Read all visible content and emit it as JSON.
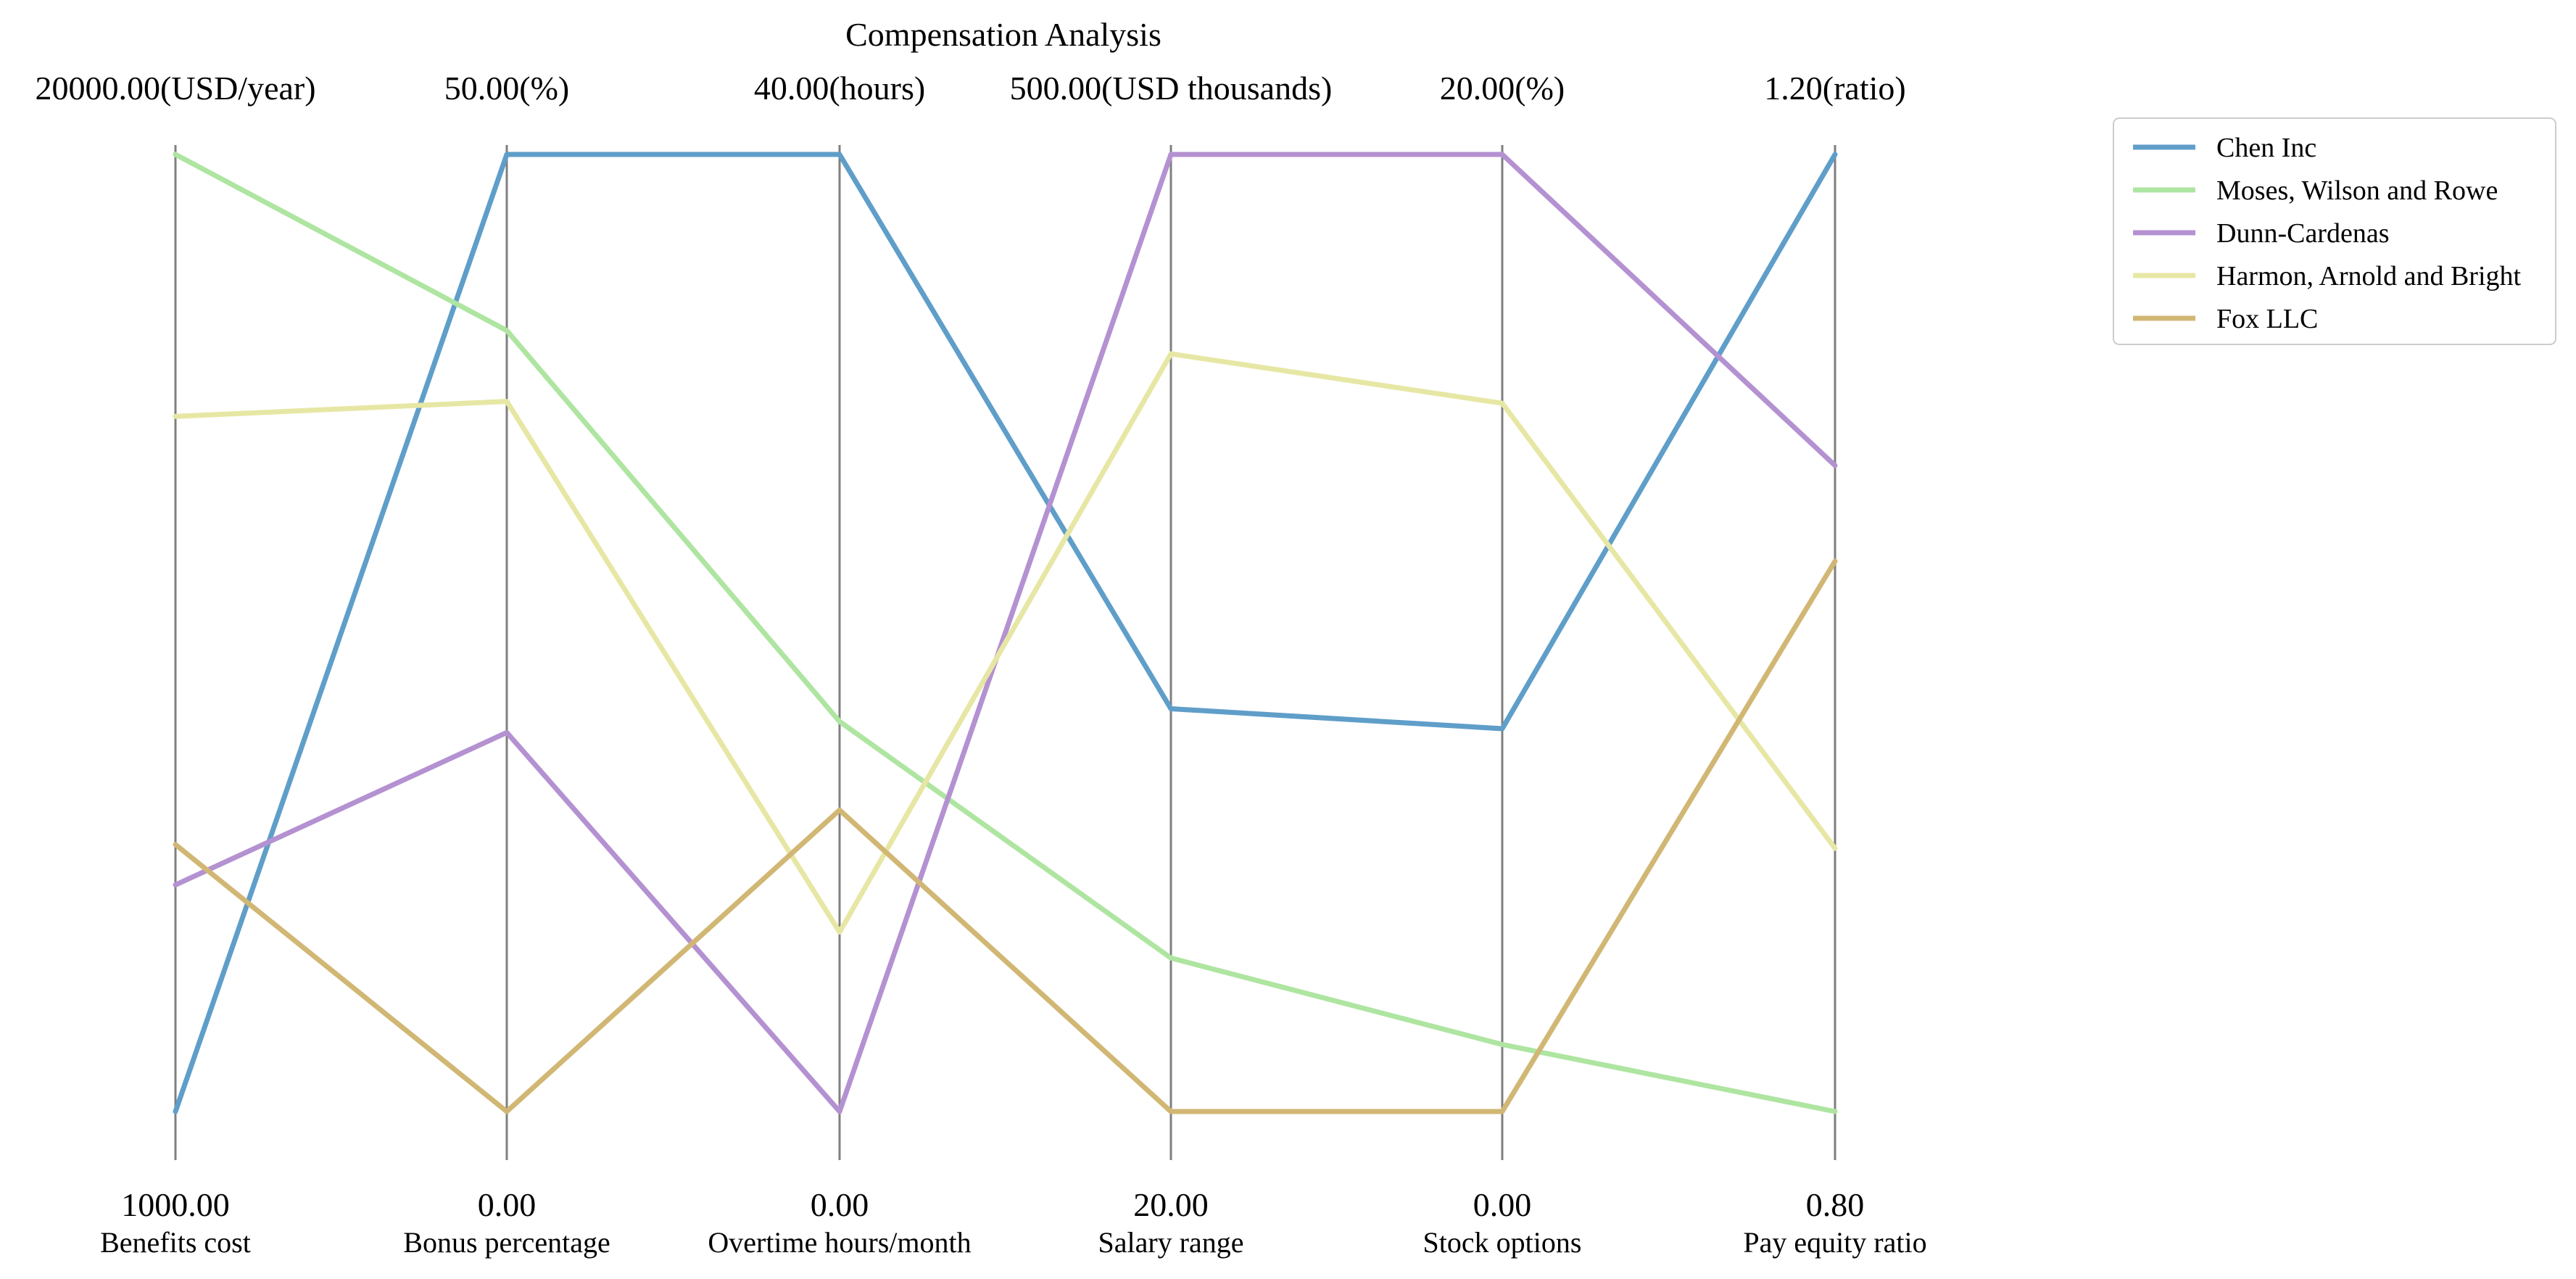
{
  "chart_data": {
    "type": "parallel-coordinates",
    "title": "Compensation Analysis",
    "axes": [
      {
        "name": "Benefits cost",
        "min": 1000.0,
        "max": 20000.0,
        "min_label": "1000.00",
        "max_label": "20000.00(USD/year)"
      },
      {
        "name": "Bonus percentage",
        "min": 0.0,
        "max": 50.0,
        "min_label": "0.00",
        "max_label": "50.00(%)"
      },
      {
        "name": "Overtime hours/month",
        "min": 0.0,
        "max": 40.0,
        "min_label": "0.00",
        "max_label": "40.00(hours)"
      },
      {
        "name": "Salary range",
        "min": 20.0,
        "max": 500.0,
        "min_label": "20.00",
        "max_label": "500.00(USD thousands)"
      },
      {
        "name": "Stock options",
        "min": 0.0,
        "max": 20.0,
        "min_label": "0.00",
        "max_label": "20.00(%)"
      },
      {
        "name": "Pay equity ratio",
        "min": 0.8,
        "max": 1.2,
        "min_label": "0.80",
        "max_label": "1.20(ratio)"
      }
    ],
    "series": [
      {
        "name": "Chen Inc",
        "color": "#5f9ec9",
        "values": [
          1000,
          50.0,
          40.0,
          222,
          8.0,
          1.2
        ]
      },
      {
        "name": "Moses, Wilson and Rowe",
        "color": "#aee5a1",
        "values": [
          20000,
          40.8,
          16.3,
          97,
          1.4,
          0.8
        ]
      },
      {
        "name": "Dunn-Cardenas",
        "color": "#b491d1",
        "values": [
          5500,
          19.8,
          0.0,
          500,
          20.0,
          1.07
        ]
      },
      {
        "name": "Harmon, Arnold and Bright",
        "color": "#e7e7a5",
        "values": [
          14800,
          37.1,
          7.5,
          400,
          14.8,
          0.91
        ]
      },
      {
        "name": "Fox LLC",
        "color": "#d1b774",
        "values": [
          6300,
          0.0,
          12.6,
          20,
          0.0,
          1.03
        ]
      }
    ],
    "legend_position": "top-right",
    "grid": false
  }
}
